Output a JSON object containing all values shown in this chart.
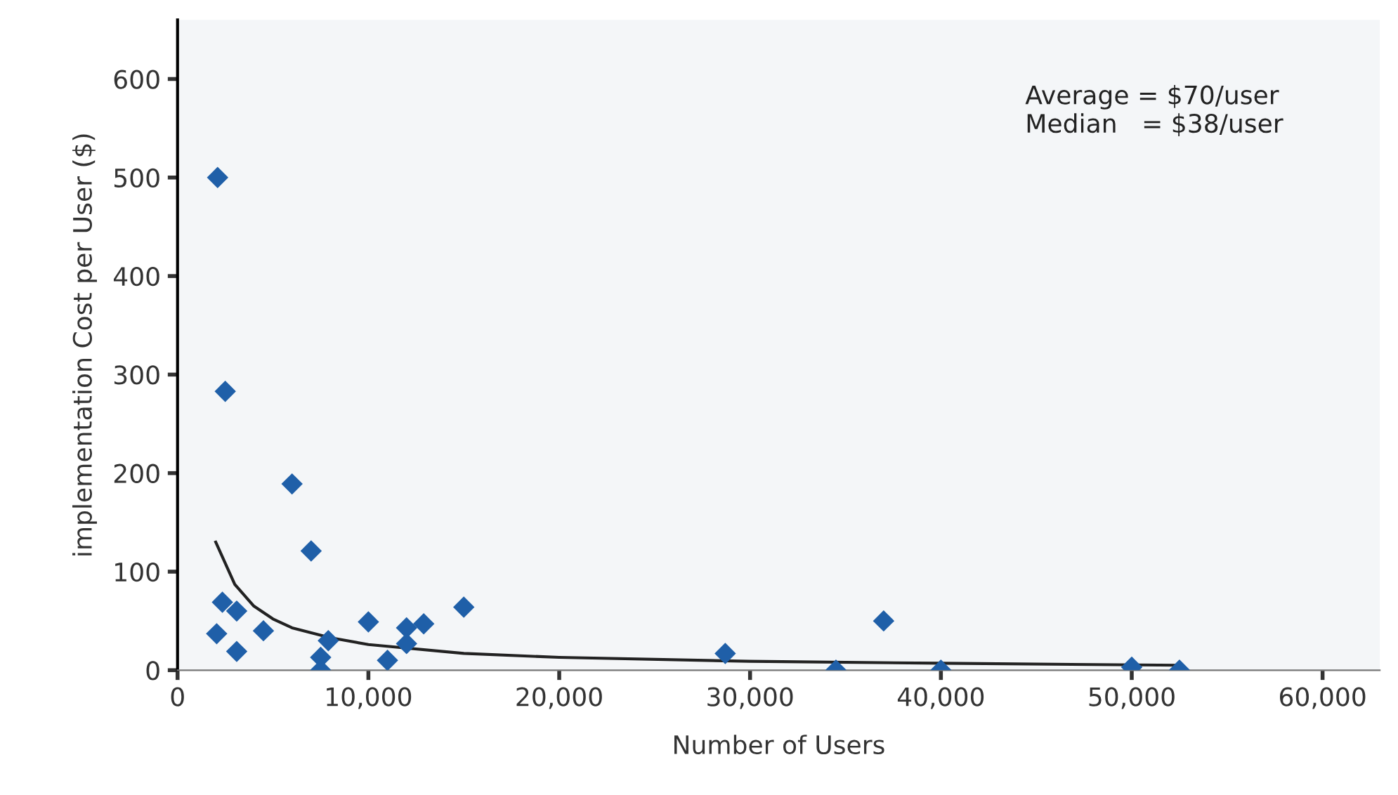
{
  "chart_data": {
    "type": "scatter",
    "xlabel": "Number of Users",
    "ylabel": "implementation Cost per User ($)",
    "annotations": [
      "Average = $70/user\nMedian   = $38/user"
    ],
    "marker": "diamond",
    "grid": false,
    "xlim": [
      0,
      63000
    ],
    "ylim": [
      0,
      660
    ],
    "xticks": [
      {
        "value": 0,
        "label": "0"
      },
      {
        "value": 10000,
        "label": "10,000"
      },
      {
        "value": 20000,
        "label": "20,000"
      },
      {
        "value": 30000,
        "label": "30,000"
      },
      {
        "value": 40000,
        "label": "40,000"
      },
      {
        "value": 50000,
        "label": "50,000"
      },
      {
        "value": 60000,
        "label": "60,000"
      }
    ],
    "yticks": [
      0,
      100,
      200,
      300,
      400,
      500,
      600
    ],
    "series": [
      {
        "color": "#1f5fa8",
        "x": [
          2100,
          2500,
          6000,
          7000,
          2350,
          3100,
          2050,
          4500,
          3100,
          7900,
          7500,
          7500,
          10000,
          11000,
          12000,
          12000,
          12900,
          15000,
          28700,
          34500,
          37000,
          40000,
          50000,
          52500
        ],
        "values": [
          500,
          283,
          189,
          121,
          69,
          60,
          37,
          40,
          19,
          30,
          13,
          0,
          49,
          10,
          43,
          27,
          47,
          64,
          17,
          0,
          50,
          0,
          3,
          0
        ]
      },
      {
        "type": "line",
        "color": "#222222",
        "marker": "none",
        "x": [
          2000,
          3000,
          4000,
          5000,
          6000,
          8000,
          10000,
          15000,
          20000,
          30000,
          40000,
          52500
        ],
        "values": [
          130,
          87,
          65,
          52,
          43,
          33,
          26,
          17,
          13,
          9,
          7,
          5
        ]
      }
    ]
  }
}
